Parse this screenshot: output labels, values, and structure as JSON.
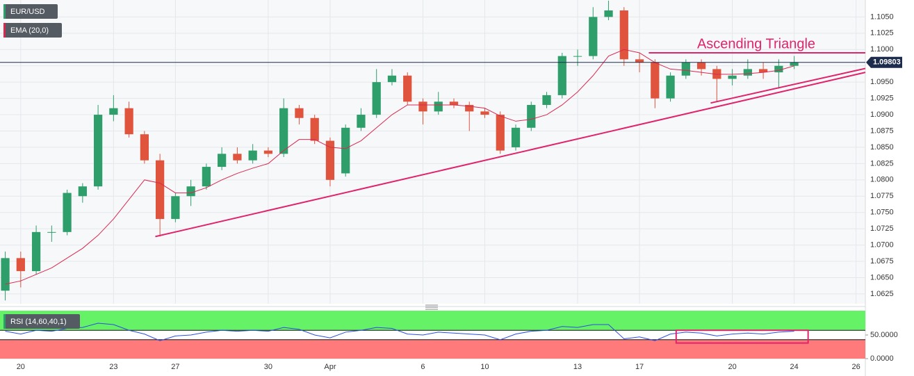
{
  "chart_data": [
    {
      "type": "candlestick",
      "name": "EUR/USD",
      "xlim": [
        -0.34,
        55.6
      ],
      "xticks": [
        {
          "value": 1,
          "label": "20"
        },
        {
          "value": 7,
          "label": "23"
        },
        {
          "value": 11,
          "label": "27"
        },
        {
          "value": 17,
          "label": "30"
        },
        {
          "value": 21,
          "label": "Apr"
        },
        {
          "value": 27,
          "label": "6"
        },
        {
          "value": 31,
          "label": "10"
        },
        {
          "value": 37,
          "label": "13"
        },
        {
          "value": 41,
          "label": "17"
        },
        {
          "value": 47,
          "label": "20"
        },
        {
          "value": 51,
          "label": "24"
        },
        {
          "value": 55,
          "label": "26"
        }
      ],
      "open": [
        1.063,
        1.068,
        1.066,
        1.072,
        1.072,
        1.0775,
        1.079,
        1.09,
        1.091,
        1.087,
        1.083,
        1.074,
        1.0775,
        1.079,
        1.082,
        1.084,
        1.083,
        1.0845,
        1.084,
        1.091,
        1.0895,
        1.086,
        1.081,
        1.088,
        1.09,
        1.095,
        1.096,
        1.092,
        1.0905,
        1.092,
        1.0915,
        1.0905,
        1.09,
        1.085,
        1.088,
        1.0915,
        1.093,
        1.099,
        1.099,
        1.105,
        1.106,
        1.0985,
        1.098,
        1.0925,
        1.096,
        1.098,
        1.097,
        1.0955,
        1.096,
        1.097,
        1.0965,
        1.0975
      ],
      "high": [
        1.069,
        1.069,
        1.073,
        1.073,
        1.0785,
        1.0795,
        1.0915,
        1.093,
        1.092,
        1.0875,
        1.084,
        1.078,
        1.08,
        1.0825,
        1.085,
        1.085,
        1.0855,
        1.085,
        1.0925,
        1.0915,
        1.09,
        1.0865,
        1.0885,
        1.091,
        1.097,
        1.097,
        1.0965,
        1.0925,
        1.0935,
        1.0925,
        1.092,
        1.091,
        1.0905,
        1.0885,
        1.092,
        1.0935,
        1.0995,
        1.1,
        1.1065,
        1.1075,
        1.1065,
        1.0995,
        1.0985,
        1.0965,
        1.0985,
        1.0985,
        1.0975,
        1.097,
        1.0985,
        1.098,
        1.0985,
        1.099
      ],
      "low": [
        1.0615,
        1.0635,
        1.0655,
        1.0705,
        1.0715,
        1.0765,
        1.0785,
        1.089,
        1.0865,
        1.0825,
        1.0713,
        1.0735,
        1.076,
        1.0785,
        1.0815,
        1.0825,
        1.0825,
        1.0835,
        1.0835,
        1.0885,
        1.0855,
        1.079,
        1.0805,
        1.0875,
        1.0895,
        1.0945,
        1.0915,
        1.0885,
        1.09,
        1.091,
        1.0875,
        1.0895,
        1.084,
        1.0845,
        1.0875,
        1.091,
        1.0925,
        1.0975,
        1.0985,
        1.1045,
        1.0975,
        1.0965,
        1.091,
        1.092,
        1.0955,
        1.096,
        1.092,
        1.0945,
        1.0955,
        1.0955,
        1.094,
        1.097
      ],
      "close": [
        1.068,
        1.066,
        1.072,
        1.072,
        1.078,
        1.079,
        1.09,
        1.091,
        1.087,
        1.083,
        1.074,
        1.0775,
        1.079,
        1.082,
        1.084,
        1.083,
        1.0845,
        1.084,
        1.091,
        1.0895,
        1.086,
        1.08,
        1.088,
        1.09,
        1.095,
        1.096,
        1.092,
        1.0905,
        1.092,
        1.0915,
        1.0905,
        1.09,
        1.0845,
        1.088,
        1.0915,
        1.093,
        1.099,
        1.099,
        1.105,
        1.106,
        1.0985,
        1.098,
        1.0925,
        1.096,
        1.098,
        1.097,
        1.0955,
        1.096,
        1.097,
        1.0965,
        1.0975,
        1.098
      ],
      "up_color": "#2e9e6a",
      "down_color": "#e0533d",
      "ylim": [
        1.061,
        1.1076
      ],
      "yticks": [
        1.0625,
        {
          "value": 1.065,
          "label": "1.0650"
        },
        1.0675,
        {
          "value": 1.07,
          "label": "1.0700"
        },
        1.0725,
        {
          "value": 1.075,
          "label": "1.0750"
        },
        1.0775,
        {
          "value": 1.08,
          "label": "1.0800"
        },
        1.0825,
        {
          "value": 1.085,
          "label": "1.0850"
        },
        1.0875,
        {
          "value": 1.09,
          "label": "1.0900"
        },
        1.0925,
        {
          "value": 1.095,
          "label": "1.0950"
        },
        1.0975,
        {
          "value": 1.1,
          "label": "1.1000"
        },
        1.1025,
        {
          "value": 1.105,
          "label": "1.1050"
        }
      ],
      "grid": true,
      "last_price": 1.09803,
      "last_price_color": "#1d2b4c",
      "overlay": {
        "name": "EMA (20,0)",
        "color": "#d9284f",
        "values": [
          1.064,
          1.0645,
          1.0655,
          1.0665,
          1.068,
          1.0695,
          1.0715,
          1.074,
          1.077,
          1.08,
          1.0795,
          1.078,
          1.078,
          1.0788,
          1.08,
          1.081,
          1.0818,
          1.0825,
          1.0845,
          1.0862,
          1.0862,
          1.085,
          1.0848,
          1.086,
          1.088,
          1.09,
          1.0915,
          1.0915,
          1.0915,
          1.0915,
          1.0913,
          1.091,
          1.0898,
          1.089,
          1.0893,
          1.09,
          1.0915,
          1.0935,
          1.096,
          1.099,
          1.1,
          1.0995,
          1.098,
          1.097,
          1.0968,
          1.0965,
          1.0962,
          1.0962,
          1.0963,
          1.0965,
          1.0968,
          1.0975
        ]
      },
      "annotation": {
        "text": "Ascending Triangle",
        "color": "#e0246b",
        "lines": [
          {
            "x": [
              9.7,
              55.6
            ],
            "y": [
              1.0713,
              1.0965
            ]
          },
          {
            "x": [
              45.6,
              55.6
            ],
            "y": [
              1.0918,
              1.0971
            ]
          },
          {
            "x": [
              41.6,
              55.6
            ],
            "y": [
              1.0995,
              1.0995
            ]
          }
        ]
      }
    },
    {
      "type": "line",
      "name": "RSI (14,60,40,1)",
      "color": "#2a4de0",
      "values": [
        58,
        52,
        60,
        58,
        64,
        66,
        75,
        72,
        60,
        52,
        38,
        48,
        50,
        56,
        60,
        58,
        60,
        58,
        66,
        62,
        50,
        44,
        56,
        60,
        66,
        64,
        52,
        50,
        56,
        54,
        52,
        50,
        40,
        52,
        58,
        60,
        68,
        66,
        72,
        72,
        42,
        46,
        38,
        52,
        56,
        54,
        48,
        52,
        54,
        52,
        56,
        58
      ],
      "ylim": [
        0,
        101.5
      ],
      "yticks": [
        {
          "value": 50,
          "label": "50.0000"
        },
        {
          "value": 0,
          "label": "0.0000"
        }
      ],
      "bands": {
        "upper": 60,
        "lower": 40,
        "upper_color": "#66f266",
        "lower_color": "#ff7b7b"
      },
      "box": {
        "x": [
          43.37,
          51.9
        ],
        "y": [
          60,
          33
        ],
        "color": "#e0246b"
      }
    }
  ]
}
